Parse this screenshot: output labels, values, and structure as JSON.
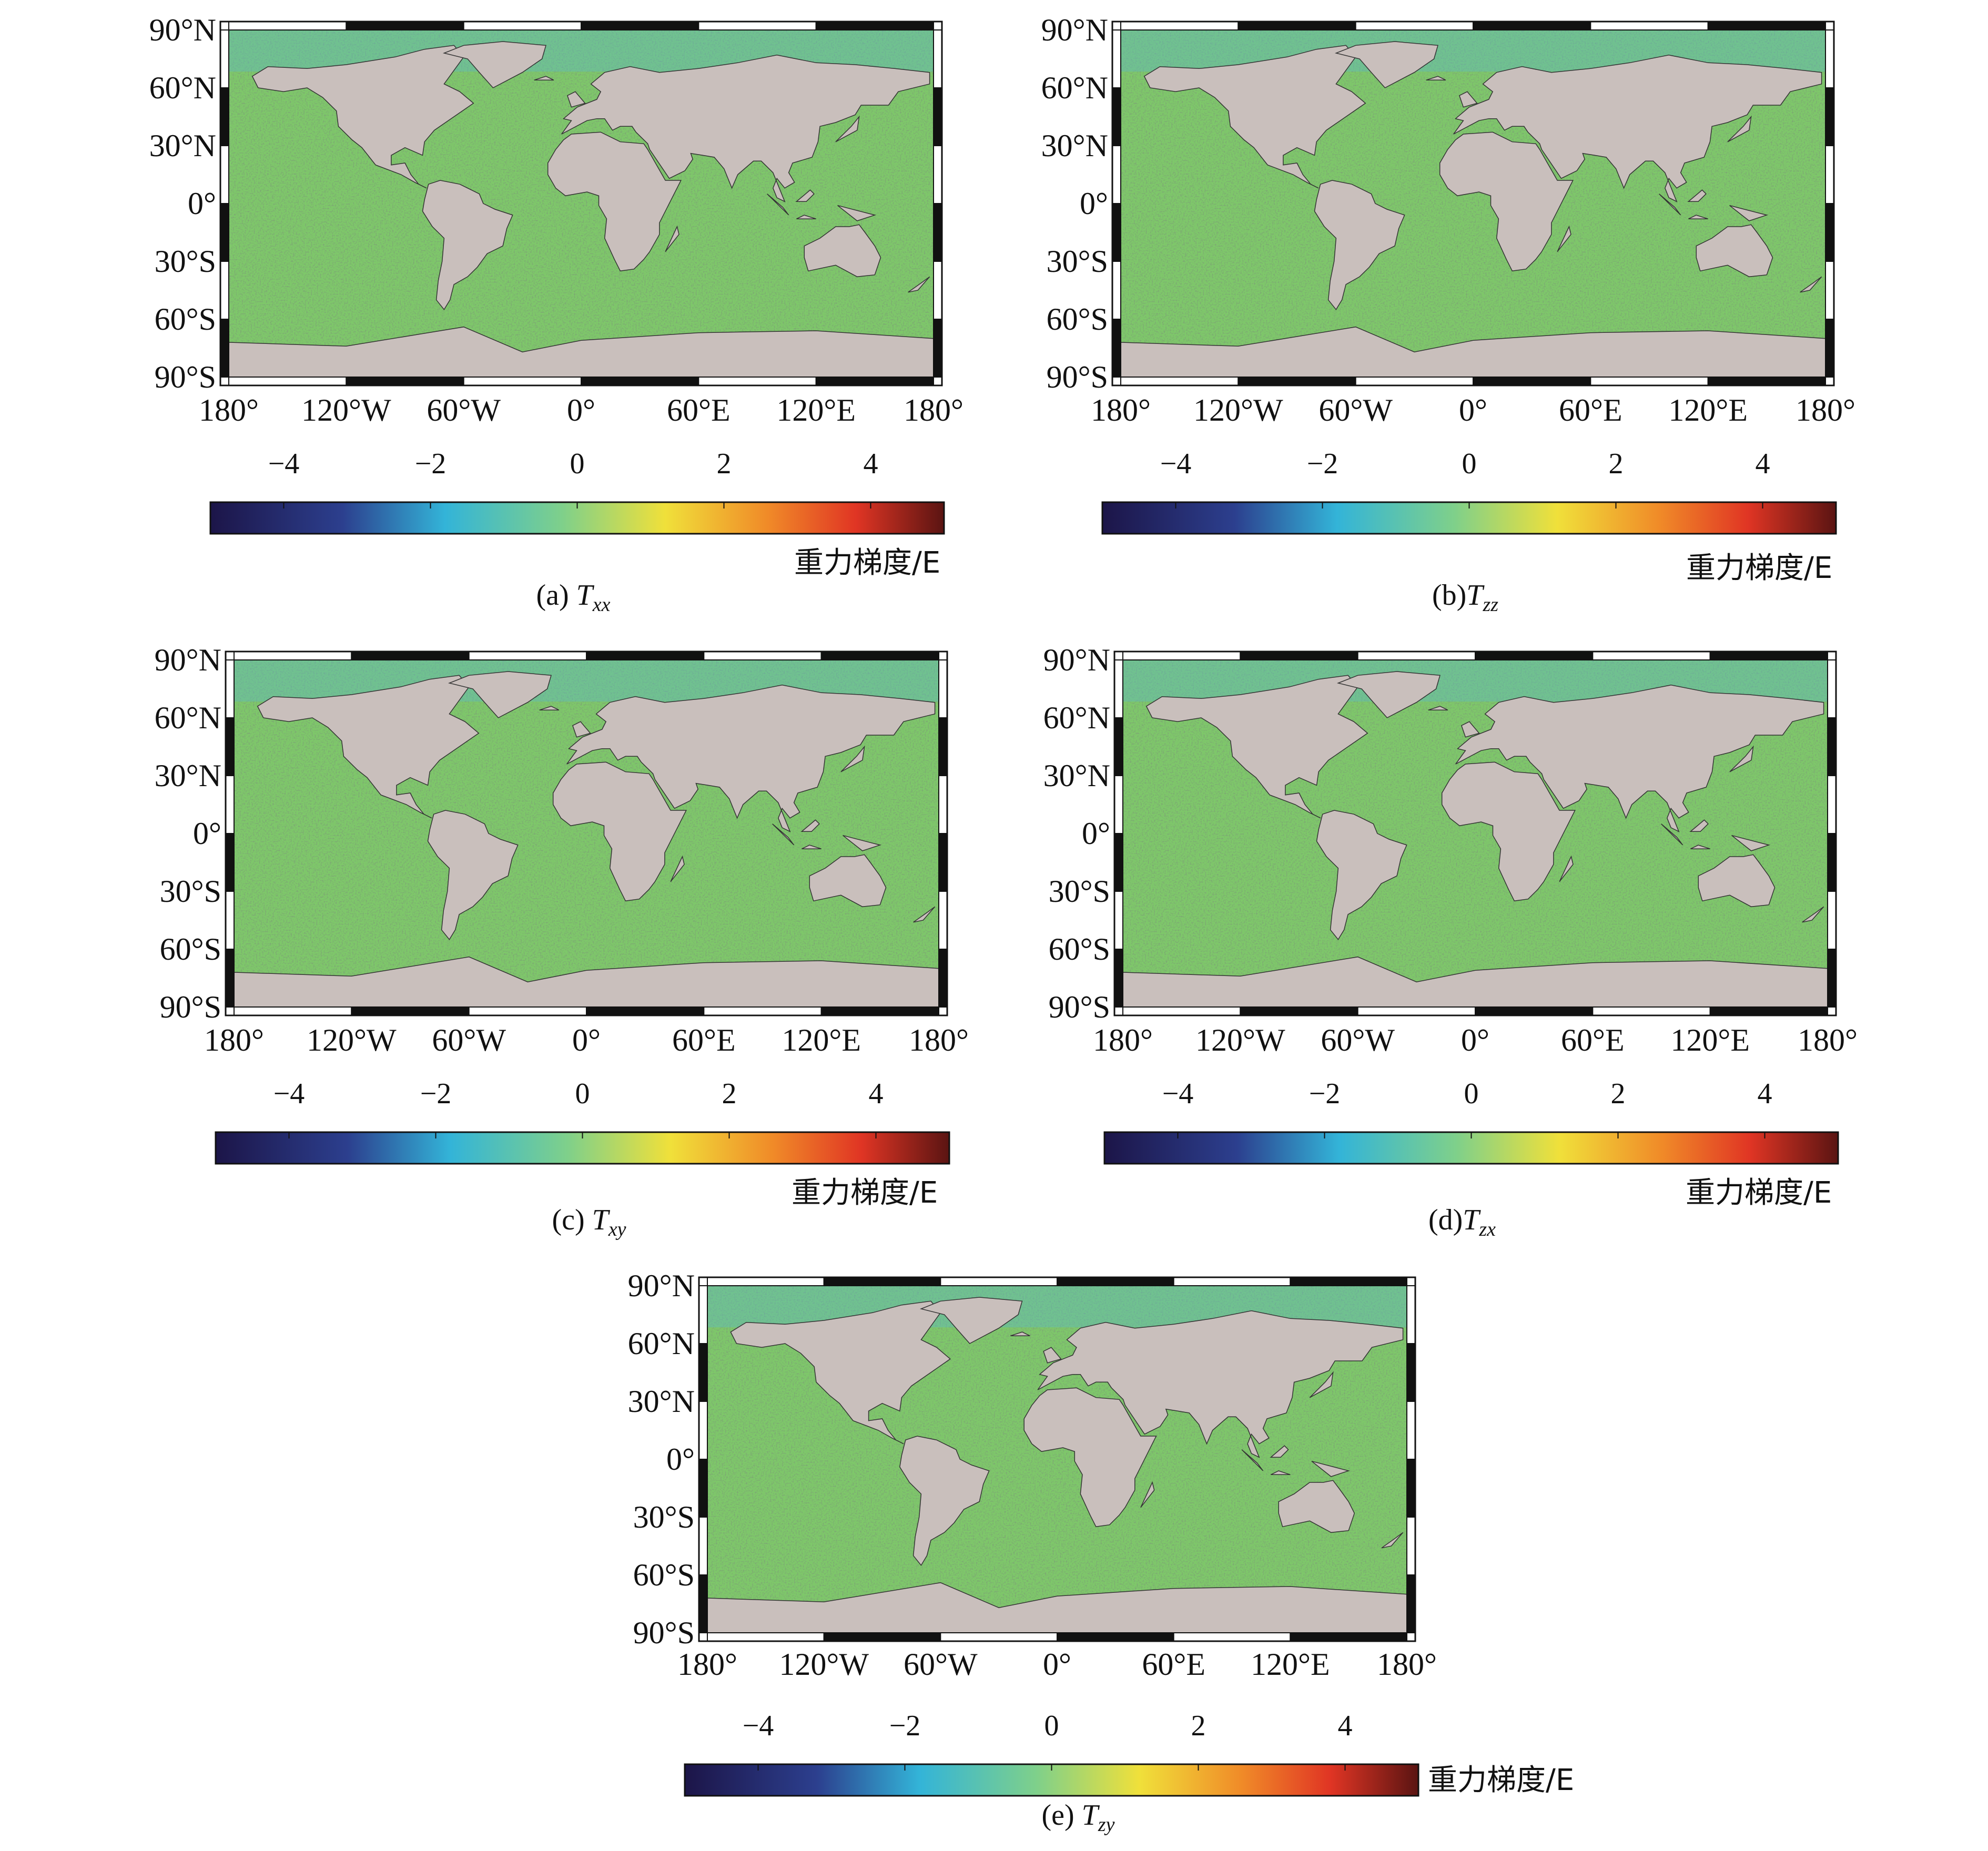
{
  "figure": {
    "lat_labels": [
      "90°N",
      "60°N",
      "30°N",
      "0°",
      "30°S",
      "60°S",
      "90°S"
    ],
    "lon_labels": [
      "180°",
      "120°W",
      "60°W",
      "0°",
      "60°E",
      "120°E",
      "180°"
    ],
    "colorbar": {
      "ticks": [
        "−4",
        "−2",
        "0",
        "2",
        "4"
      ],
      "unit_label": "重力梯度/E",
      "colors": [
        "#1c1548",
        "#2c3f8e",
        "#33b4d8",
        "#7fd08a",
        "#f0e03a",
        "#f08a28",
        "#e03524",
        "#5a1412"
      ]
    },
    "colors": {
      "ocean": "#7ec86a",
      "land": "#c9bfbc",
      "frame_dark": "#111111",
      "frame_light": "#ffffff"
    }
  },
  "panels": [
    {
      "id": "a",
      "caption_prefix": "(a) ",
      "symbol": "T",
      "subscript": "xx"
    },
    {
      "id": "b",
      "caption_prefix": "(b)",
      "symbol": "T",
      "subscript": "zz"
    },
    {
      "id": "c",
      "caption_prefix": "(c) ",
      "symbol": "T",
      "subscript": "xy"
    },
    {
      "id": "d",
      "caption_prefix": "(d)",
      "symbol": "T",
      "subscript": "zx"
    },
    {
      "id": "e",
      "caption_prefix": "(e) ",
      "symbol": "T",
      "subscript": "zy"
    }
  ]
}
